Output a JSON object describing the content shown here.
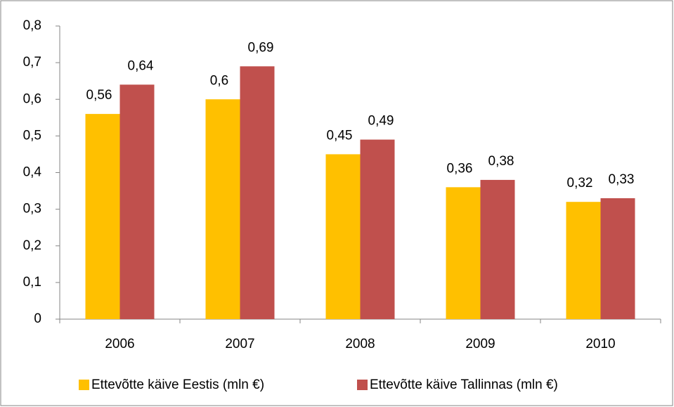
{
  "chart_data": {
    "type": "bar",
    "categories": [
      "2006",
      "2007",
      "2008",
      "2009",
      "2010"
    ],
    "series": [
      {
        "name": "Ettevõtte käive Eestis (mln €)",
        "color": "#FFC000",
        "values": [
          0.56,
          0.6,
          0.45,
          0.36,
          0.32
        ],
        "value_labels": [
          "0,56",
          "0,6",
          "0,45",
          "0,36",
          "0,32"
        ]
      },
      {
        "name": "Ettevõtte käive Tallinnas (mln €)",
        "color": "#C0504D",
        "values": [
          0.64,
          0.69,
          0.49,
          0.38,
          0.33
        ],
        "value_labels": [
          "0,64",
          "0,69",
          "0,49",
          "0,38",
          "0,33"
        ]
      }
    ],
    "ylim": [
      0,
      0.8
    ],
    "yticks": [
      0,
      {
        "value": 0.1,
        "label": "0,1"
      },
      {
        "value": 0.2,
        "label": "0,2"
      },
      {
        "value": 0.3,
        "label": "0,3"
      },
      {
        "value": 0.4,
        "label": "0,4"
      },
      {
        "value": 0.5,
        "label": "0,5"
      },
      {
        "value": 0.6,
        "label": "0,6"
      },
      {
        "value": 0.7,
        "label": "0,7"
      },
      {
        "value": 0.8,
        "label": "0,8"
      }
    ],
    "grid": false,
    "legend": "bottom"
  }
}
